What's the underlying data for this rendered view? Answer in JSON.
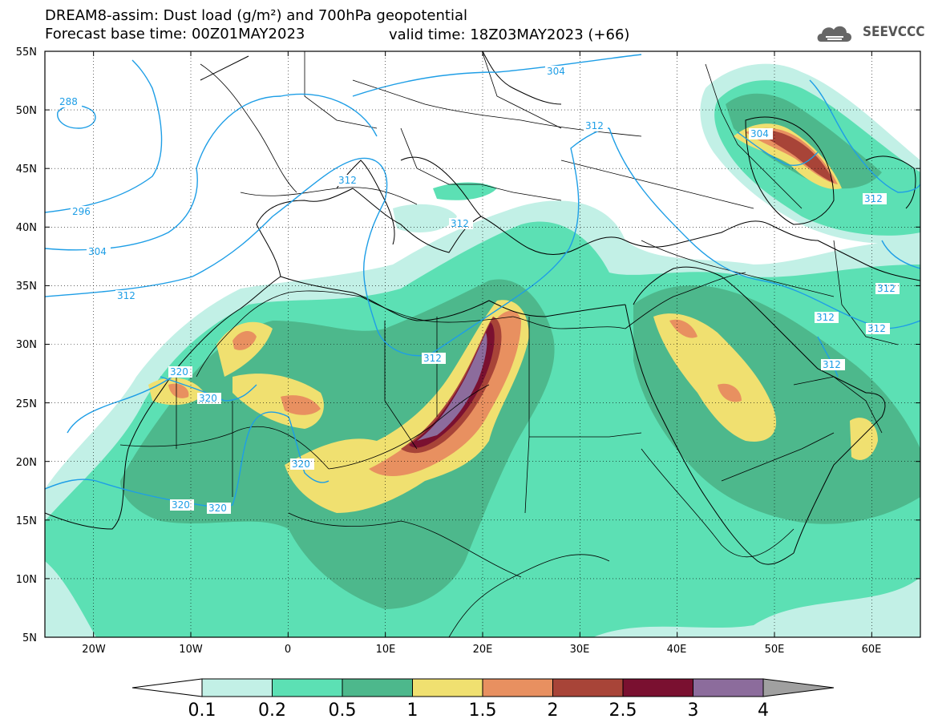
{
  "header": {
    "title_line_1": "DREAM8-assim: Dust load (g/m²) and 700hPa geopotential",
    "title_line_2": "Forecast base time: 00Z01MAY2023",
    "valid_time": "valid time: 18Z03MAY2023 (+66)"
  },
  "logo": {
    "text": "SEEVCCC",
    "icon": "cloud-logo-icon"
  },
  "map": {
    "lon_range": [
      -25,
      65
    ],
    "lat_range": [
      5,
      55
    ],
    "lat_labels": [
      "55N",
      "50N",
      "45N",
      "40N",
      "35N",
      "30N",
      "25N",
      "20N",
      "15N",
      "10N",
      "5N"
    ],
    "lon_labels": [
      "20W",
      "10W",
      "0",
      "10E",
      "20E",
      "30E",
      "40E",
      "50E",
      "60E"
    ],
    "contour_color": "#1e9ee6",
    "contour_labels": [
      "288",
      "296",
      "304",
      "312",
      "312",
      "304",
      "312",
      "320",
      "320",
      "320",
      "320",
      "320",
      "312",
      "312",
      "304",
      "304",
      "312",
      "312",
      "312",
      "312",
      "312",
      "312",
      "312"
    ]
  },
  "colorbar": {
    "labels": [
      "0.1",
      "0.2",
      "0.5",
      "1",
      "1.5",
      "2",
      "2.5",
      "3",
      "4"
    ],
    "colors": [
      "#c2f0e6",
      "#5ce0b4",
      "#4db88c",
      "#f0e070",
      "#e89060",
      "#a84438",
      "#7a1030",
      "#8c6c9c"
    ],
    "under_color": "#ffffff",
    "over_color": "#a0a0a0"
  }
}
